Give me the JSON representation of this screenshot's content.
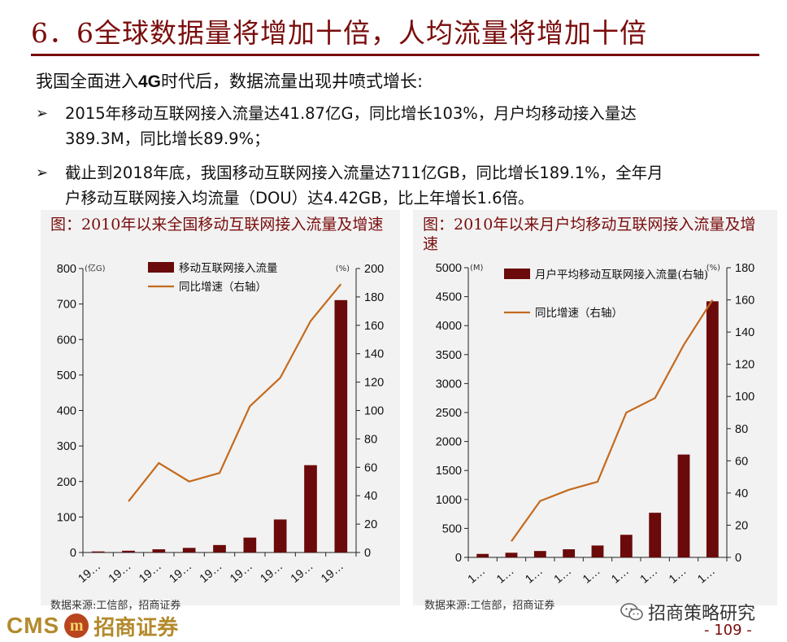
{
  "title": "6．6全球数据量将增加十倍，人均流量将增加十倍",
  "intro": {
    "prefix": "我国全面进入",
    "highlight": "4G",
    "suffix": "时代后，数据流量出现井喷式增长:"
  },
  "bullets": [
    {
      "mark": "➢",
      "line1": "2015年移动互联网接入流量达41.87亿G，同比增长103%，月户均移动接入量达",
      "line2": "389.3M，同比增长89.9%；"
    },
    {
      "mark": "➢",
      "line1": "截止到2018年底，我国移动互联网接入流量达711亿GB，同比增长189.1%，全年月",
      "line2": "户移动互联网接入均流量（DOU）达4.42GB，比上年增长1.6倍。"
    }
  ],
  "chart_data": [
    {
      "type": "bar",
      "title": "图：2010年以来全国移动互联网接入流量及增速",
      "unit_left": "(亿G)",
      "unit_right": "(%)",
      "categories": [
        "19…",
        "19…",
        "19…",
        "19…",
        "19…",
        "19…",
        "19…",
        "19…",
        "19…"
      ],
      "series": [
        {
          "name": "移动互联网接入流量",
          "kind": "bar",
          "axis": "left",
          "color": "#6b0a0a",
          "values": [
            3,
            5,
            9,
            13,
            21,
            42,
            93,
            246,
            711
          ]
        },
        {
          "name": "同比增速（右轴）",
          "kind": "line",
          "axis": "right",
          "color": "#c46a1e",
          "values": [
            null,
            36,
            63,
            50,
            56,
            103,
            123,
            163,
            189
          ]
        }
      ],
      "ylim_left": [
        0,
        800
      ],
      "yticks_left": [
        0,
        100,
        200,
        300,
        400,
        500,
        600,
        700,
        800
      ],
      "ylim_right": [
        0,
        200
      ],
      "yticks_right": [
        0,
        20,
        40,
        60,
        80,
        100,
        120,
        140,
        160,
        180,
        200
      ],
      "legend": "top-left",
      "grid": false,
      "source": "数据来源:工信部，招商证券"
    },
    {
      "type": "bar",
      "title": "图：2010年以来月户均移动互联网接入流量及增速",
      "unit_left": "(M)",
      "unit_right": "(%)",
      "categories": [
        "1…",
        "1…",
        "1…",
        "1…",
        "1…",
        "1…",
        "1…",
        "1…",
        "1…"
      ],
      "series": [
        {
          "name": "月户平均移动互联网接入流量(右轴)",
          "kind": "bar",
          "axis": "left",
          "color": "#6b0a0a",
          "values": [
            60,
            80,
            110,
            140,
            205,
            390,
            770,
            1775,
            4420
          ]
        },
        {
          "name": "同比增速（右轴）",
          "kind": "line",
          "axis": "right",
          "color": "#c46a1e",
          "values": [
            null,
            10,
            35,
            42,
            47,
            90,
            99,
            132,
            160
          ]
        }
      ],
      "ylim_left": [
        0,
        5000
      ],
      "yticks_left": [
        0,
        500,
        1000,
        1500,
        2000,
        2500,
        3000,
        3500,
        4000,
        4500,
        5000
      ],
      "ylim_right": [
        0,
        180
      ],
      "yticks_right": [
        0,
        20,
        40,
        60,
        80,
        100,
        120,
        140,
        160,
        180
      ],
      "legend": "top-left",
      "grid": false,
      "source": "数据来源:工信部，招商证券"
    }
  ],
  "brand": {
    "cms": "CMS",
    "name": "招商证券"
  },
  "wechat": {
    "icon": "wechat-icon",
    "label": "招商策略研究"
  },
  "page_number": "- 109 -"
}
